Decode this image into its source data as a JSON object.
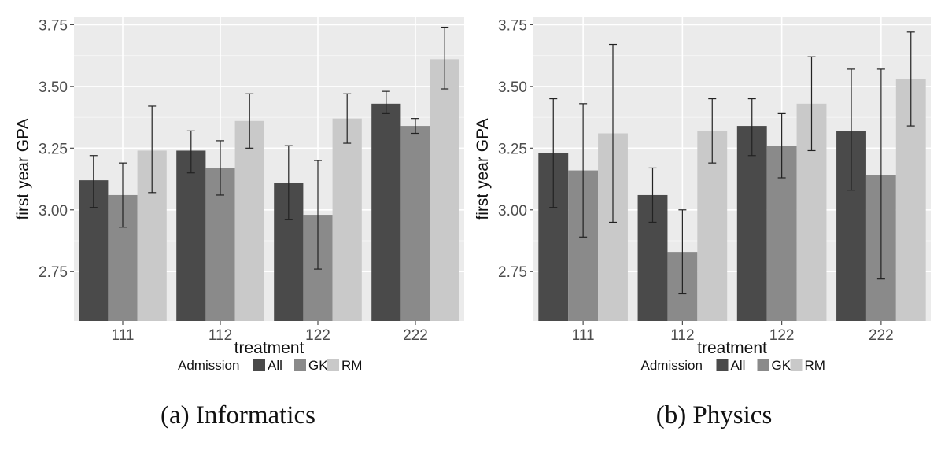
{
  "chart_data": [
    {
      "type": "bar",
      "caption": "(a) Informatics",
      "xlabel": "treatment",
      "ylabel": "first year GPA",
      "categories": [
        "111",
        "112",
        "122",
        "222"
      ],
      "ylim": [
        2.55,
        3.78
      ],
      "yticks": [
        "2.75",
        "3.00",
        "3.25",
        "3.50",
        "3.75"
      ],
      "grid": true,
      "legend": {
        "title": "Admission",
        "placement": "bottom",
        "entries": [
          "All",
          "GK",
          "RM"
        ]
      },
      "series": [
        {
          "name": "All",
          "color": "#4a4a4a",
          "values": [
            3.12,
            3.24,
            3.11,
            3.43
          ],
          "err_low": [
            3.01,
            3.15,
            2.96,
            3.39
          ],
          "err_high": [
            3.22,
            3.32,
            3.26,
            3.48
          ]
        },
        {
          "name": "GK",
          "color": "#8a8a8a",
          "values": [
            3.06,
            3.17,
            2.98,
            3.34
          ],
          "err_low": [
            2.93,
            3.06,
            2.76,
            3.31
          ],
          "err_high": [
            3.19,
            3.28,
            3.2,
            3.37
          ]
        },
        {
          "name": "RM",
          "color": "#c9c9c9",
          "values": [
            3.24,
            3.36,
            3.37,
            3.61
          ],
          "err_low": [
            3.07,
            3.25,
            3.27,
            3.49
          ],
          "err_high": [
            3.42,
            3.47,
            3.47,
            3.74
          ]
        }
      ]
    },
    {
      "type": "bar",
      "caption": "(b) Physics",
      "xlabel": "treatment",
      "ylabel": "first year GPA",
      "categories": [
        "111",
        "112",
        "122",
        "222"
      ],
      "ylim": [
        2.55,
        3.78
      ],
      "yticks": [
        "2.75",
        "3.00",
        "3.25",
        "3.50",
        "3.75"
      ],
      "grid": true,
      "legend": {
        "title": "Admission",
        "placement": "bottom",
        "entries": [
          "All",
          "GK",
          "RM"
        ]
      },
      "series": [
        {
          "name": "All",
          "color": "#4a4a4a",
          "values": [
            3.23,
            3.06,
            3.34,
            3.32
          ],
          "err_low": [
            3.01,
            2.95,
            3.22,
            3.08
          ],
          "err_high": [
            3.45,
            3.17,
            3.45,
            3.57
          ]
        },
        {
          "name": "GK",
          "color": "#8a8a8a",
          "values": [
            3.16,
            2.83,
            3.26,
            3.14
          ],
          "err_low": [
            2.89,
            2.66,
            3.13,
            2.72
          ],
          "err_high": [
            3.43,
            3.0,
            3.39,
            3.57
          ]
        },
        {
          "name": "RM",
          "color": "#c9c9c9",
          "values": [
            3.31,
            3.32,
            3.43,
            3.53
          ],
          "err_low": [
            2.95,
            3.19,
            3.24,
            3.34
          ],
          "err_high": [
            3.67,
            3.45,
            3.62,
            3.72
          ]
        }
      ]
    }
  ]
}
